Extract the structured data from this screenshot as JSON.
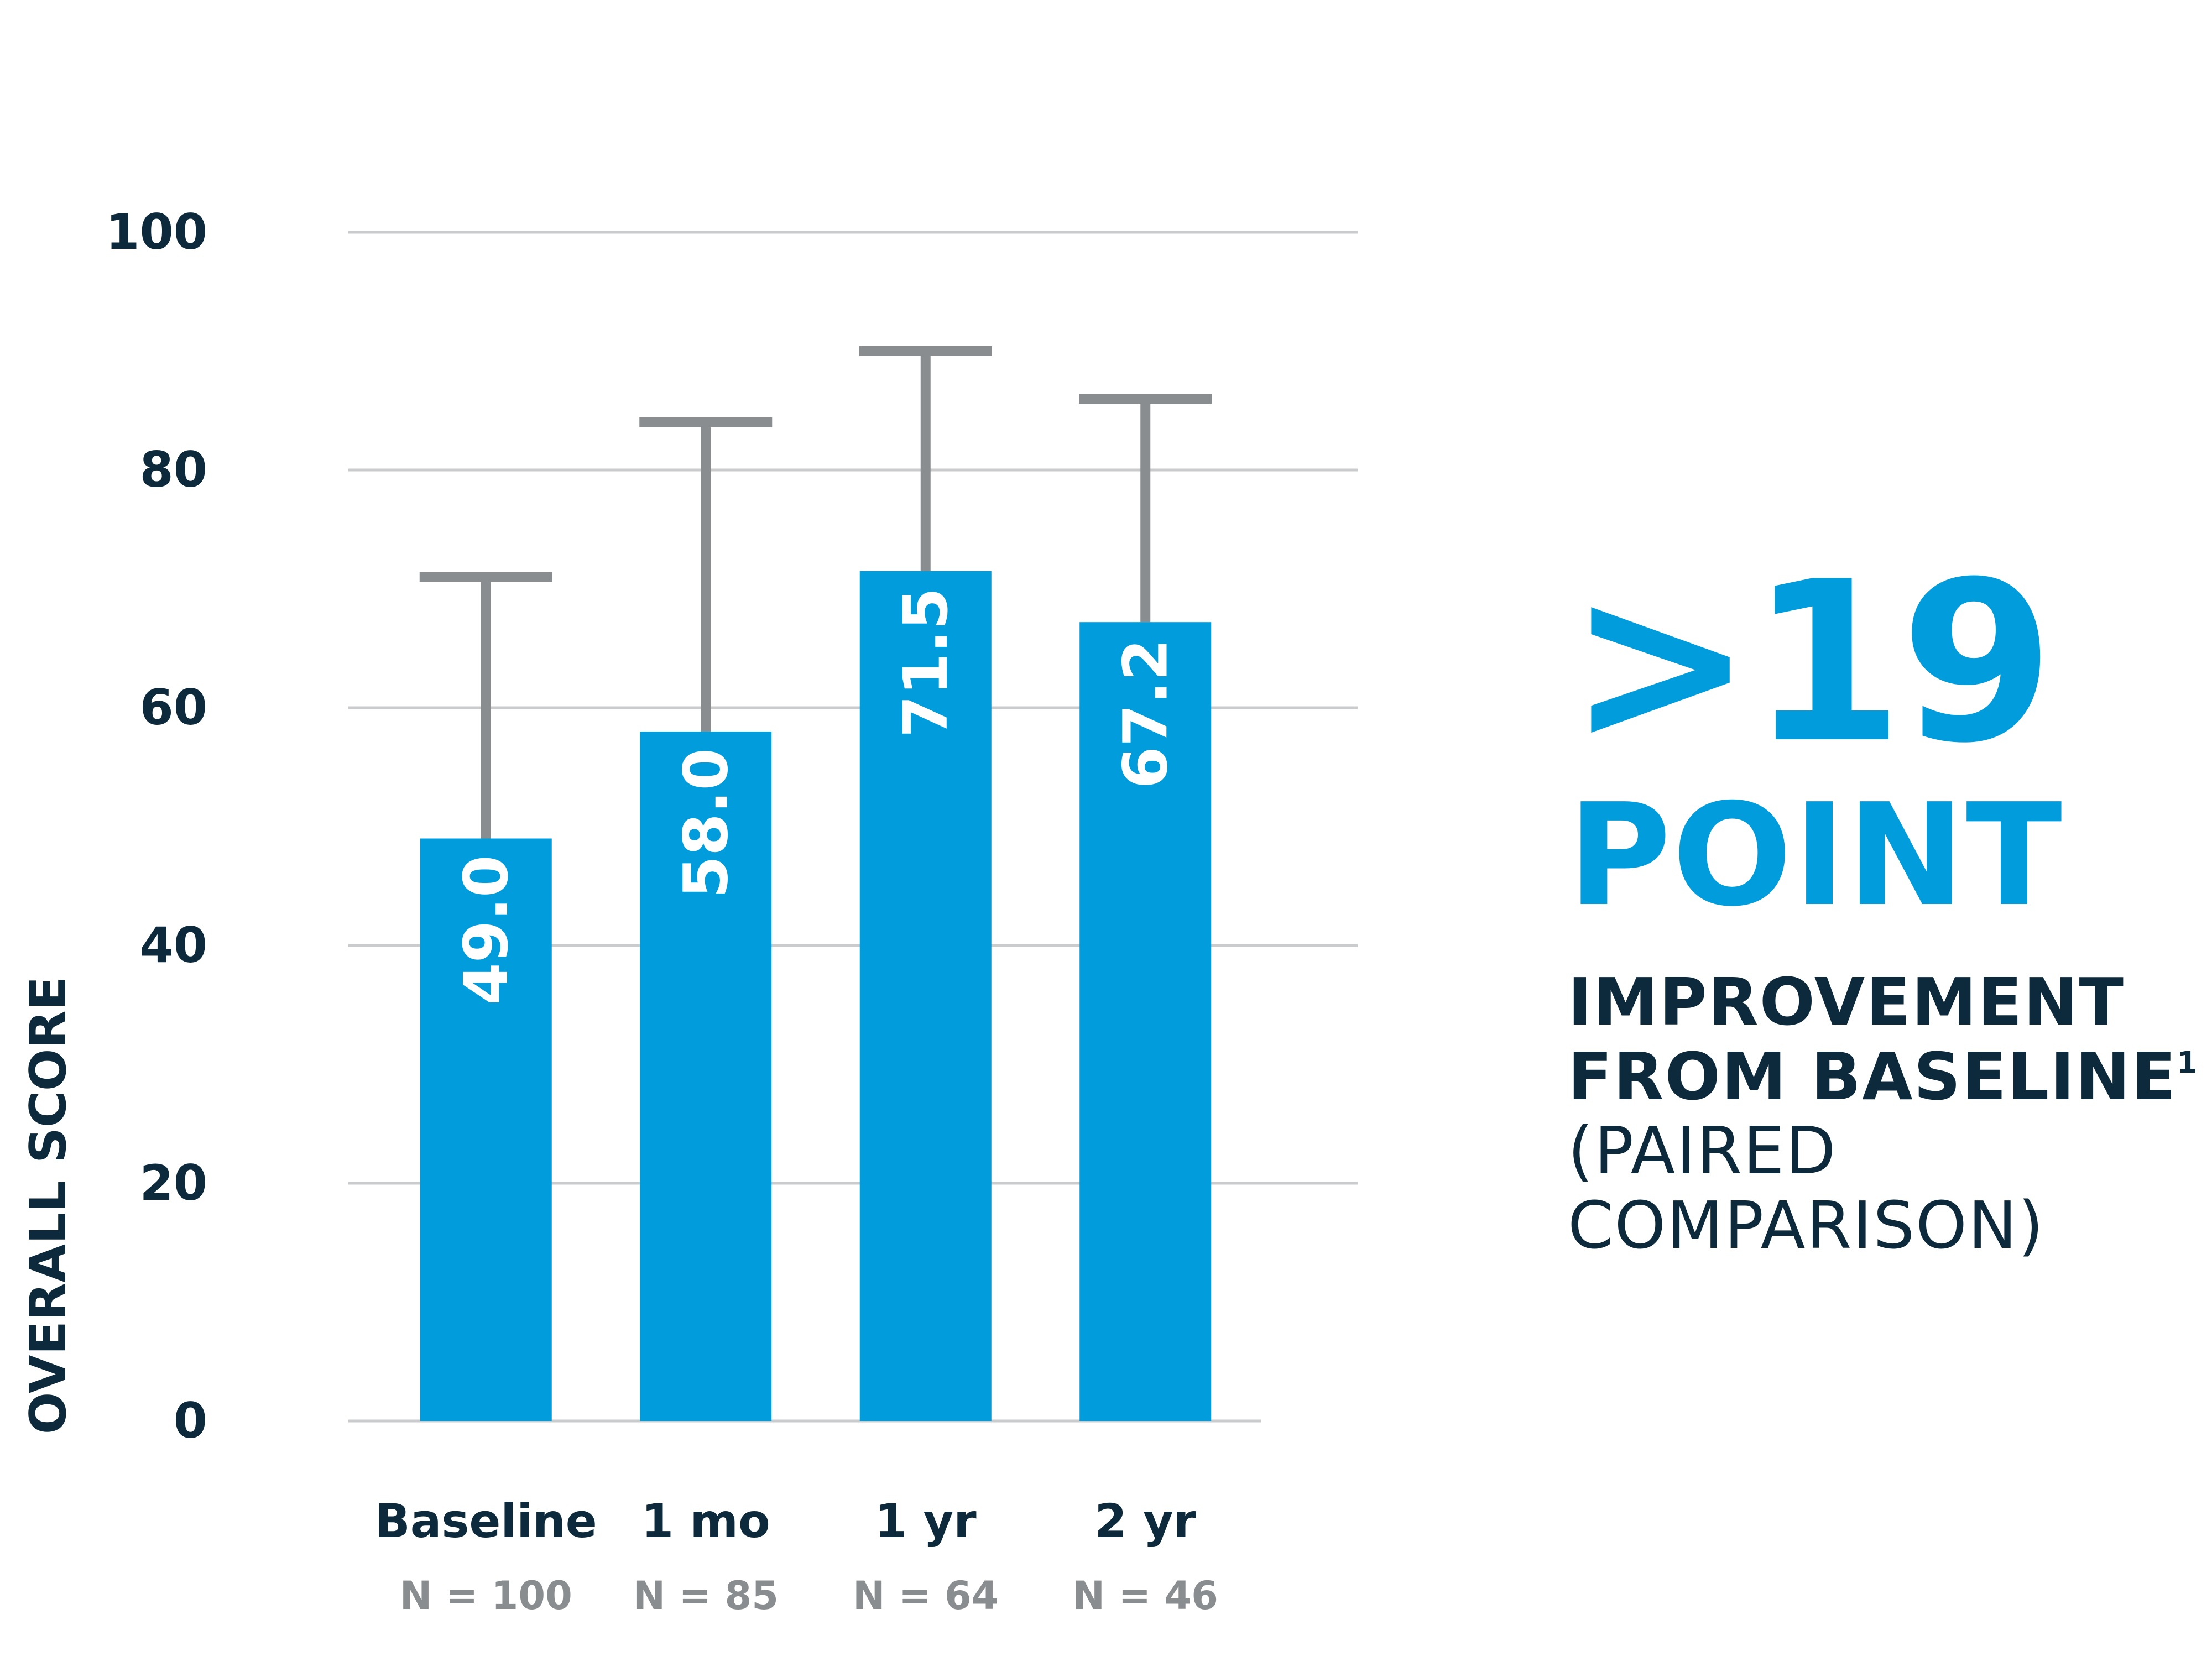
{
  "chart_data": {
    "type": "bar",
    "categories": [
      "Baseline",
      "1 mo",
      "1 yr",
      "2 yr"
    ],
    "sample_sizes": [
      "N = 100",
      "N = 85",
      "N = 64",
      "N = 46"
    ],
    "values": [
      49.0,
      58.0,
      71.5,
      67.2
    ],
    "value_labels": [
      "49.0",
      "58.0",
      "71.5",
      "67.2"
    ],
    "error_bar_upper": [
      71,
      84,
      90,
      86
    ],
    "ylabel": "OVERALL SCORE",
    "xlabel": "",
    "ylim": [
      0,
      100
    ],
    "yticks": [
      0,
      20,
      40,
      60,
      80,
      100
    ],
    "grid": true,
    "legend": "none"
  },
  "callout": {
    "number": ">19",
    "word": "POINT",
    "line1": "IMPROVEMENT",
    "line2": "FROM BASELINE",
    "footnote": "1",
    "line3": "(PAIRED",
    "line4": "COMPARISON)"
  },
  "colors": {
    "bar": "#009cdc",
    "error_bar": "#8a8d90",
    "grid": "#c9cbcd",
    "text_dark": "#0d2a3d",
    "text_gray": "#8a8d90",
    "value_text": "#ffffff"
  }
}
